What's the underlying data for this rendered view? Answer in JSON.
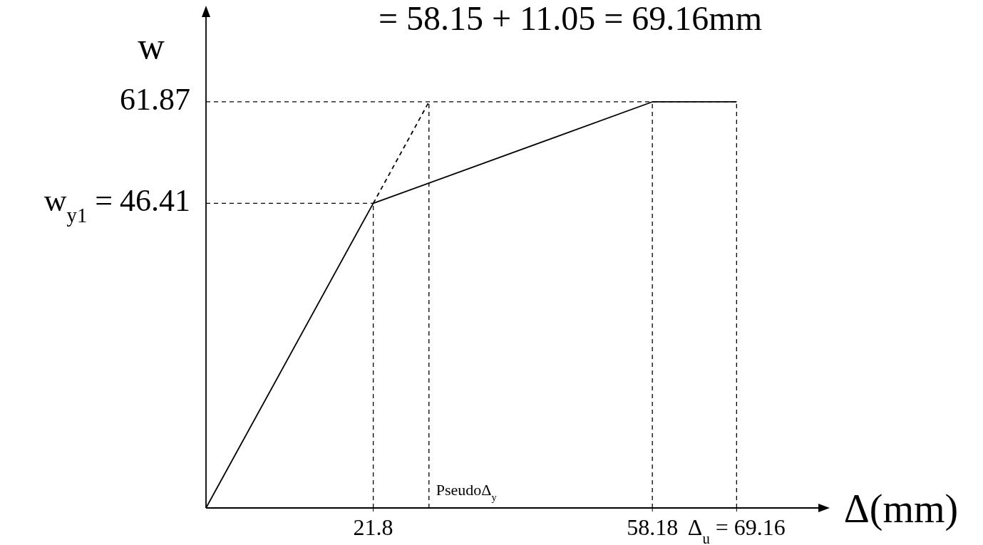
{
  "chart_data": {
    "type": "line",
    "title": "= 58.15 + 11.05 = 69.16mm",
    "xlabel": "Δ(mm)",
    "ylabel": "w",
    "xlim": [
      0,
      80
    ],
    "ylim": [
      0,
      75
    ],
    "xticks": [
      21.8,
      58.18,
      {
        "value": 69.16,
        "label": "Δ$_{u}$ = 69.16"
      }
    ],
    "yticks": [
      46.41,
      61.87
    ],
    "annotations": [
      {
        "text": "w$_{y1}$ =",
        "x": 0,
        "y": 46.41
      }
    ],
    "series": [
      {
        "color": "#000000",
        "x": [
          0,
          21.8,
          58.18,
          69.16
        ],
        "values": [
          0,
          46.41,
          61.87,
          61.87
        ],
        "line_style": "solid"
      },
      {
        "color": "#000000",
        "x": [
          21.8,
          29.06
        ],
        "values": [
          46.41,
          61.87
        ],
        "line_style": "dashed"
      }
    ],
    "ref_lines": [
      {
        "axis": "x",
        "value": 21.8
      },
      {
        "axis": "x",
        "value": 29.06,
        "label": "PseudoΔ$_{y}$"
      },
      {
        "axis": "x",
        "value": 58.18
      },
      {
        "axis": "x",
        "value": 69.16
      },
      {
        "axis": "y",
        "value": 46.41
      },
      {
        "axis": "y",
        "value": 61.87
      }
    ],
    "line_style": "dashed",
    "marker": "none"
  }
}
